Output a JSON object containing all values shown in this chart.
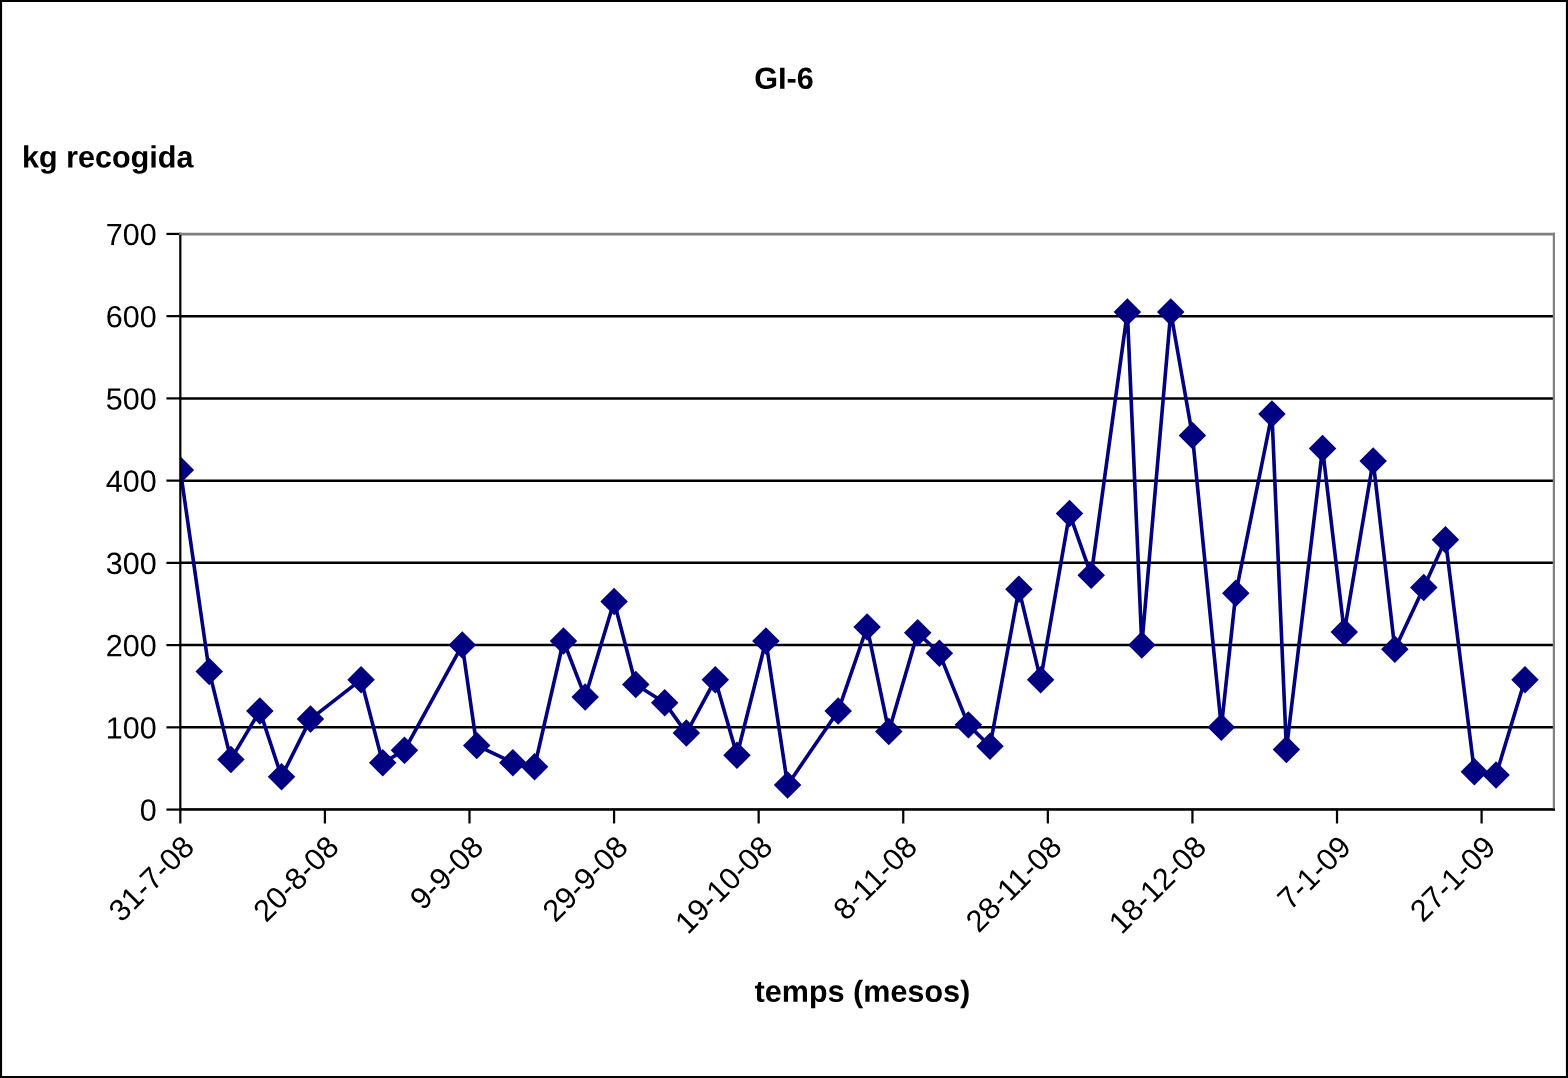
{
  "chart_data": {
    "type": "line",
    "title": "GI-6",
    "ylabel": "kg recogida",
    "xlabel": "temps (mesos)",
    "x": [
      "2008-07-31",
      "2008-08-04",
      "2008-08-07",
      "2008-08-11",
      "2008-08-14",
      "2008-08-18",
      "2008-08-25",
      "2008-08-28",
      "2008-08-31",
      "2008-09-08",
      "2008-09-10",
      "2008-09-15",
      "2008-09-18",
      "2008-09-22",
      "2008-09-25",
      "2008-09-29",
      "2008-10-02",
      "2008-10-06",
      "2008-10-09",
      "2008-10-13",
      "2008-10-16",
      "2008-10-20",
      "2008-10-23",
      "2008-10-30",
      "2008-11-03",
      "2008-11-06",
      "2008-11-10",
      "2008-11-13",
      "2008-11-17",
      "2008-11-20",
      "2008-11-24",
      "2008-11-27",
      "2008-12-01",
      "2008-12-04",
      "2008-12-09",
      "2008-12-11",
      "2008-12-15",
      "2008-12-18",
      "2008-12-22",
      "2008-12-24",
      "2008-12-29",
      "2008-12-31",
      "2009-01-05",
      "2009-01-08",
      "2009-01-12",
      "2009-01-15",
      "2009-01-19",
      "2009-01-22",
      "2009-01-26",
      "2009-01-29",
      "2009-02-02"
    ],
    "series": [
      {
        "color": "#000080",
        "values": [
          413,
          168,
          61,
          120,
          40,
          110,
          158,
          57,
          72,
          200,
          78,
          57,
          52,
          205,
          137,
          253,
          152,
          130,
          93,
          158,
          66,
          205,
          30,
          120,
          222,
          95,
          215,
          190,
          103,
          77,
          268,
          158,
          360,
          285,
          605,
          200,
          605,
          455,
          100,
          263,
          481,
          73,
          439,
          216,
          424,
          195,
          270,
          328,
          46,
          42,
          158
        ]
      }
    ],
    "xlim": [
      "2008-07-31",
      "2009-02-06"
    ],
    "xticks": [
      {
        "value": "2008-07-31",
        "label": "31-7-08"
      },
      {
        "value": "2008-08-20",
        "label": "20-8-08"
      },
      {
        "value": "2008-09-09",
        "label": "9-9-08"
      },
      {
        "value": "2008-09-29",
        "label": "29-9-08"
      },
      {
        "value": "2008-10-19",
        "label": "19-10-08"
      },
      {
        "value": "2008-11-08",
        "label": "8-11-08"
      },
      {
        "value": "2008-11-28",
        "label": "28-11-08"
      },
      {
        "value": "2008-12-18",
        "label": "18-12-08"
      },
      {
        "value": "2009-01-07",
        "label": "7-1-09"
      },
      {
        "value": "2009-01-27",
        "label": "27-1-09"
      }
    ],
    "ylim": [
      0,
      700
    ],
    "yticks": [
      0,
      100,
      200,
      300,
      400,
      500,
      600,
      700
    ],
    "grid": "y",
    "marker": "diamond",
    "line_style": "solid",
    "legend": false
  }
}
